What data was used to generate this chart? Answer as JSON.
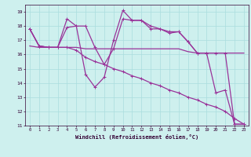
{
  "xlabel": "Windchill (Refroidissement éolien,°C)",
  "bg_color": "#cef0ee",
  "grid_color": "#aadddd",
  "line_color": "#993399",
  "ylim": [
    11,
    19.5
  ],
  "xlim": [
    -0.5,
    23.5
  ],
  "yticks": [
    11,
    12,
    13,
    14,
    15,
    16,
    17,
    18,
    19
  ],
  "xticks": [
    0,
    1,
    2,
    3,
    4,
    5,
    6,
    7,
    8,
    9,
    10,
    11,
    12,
    13,
    14,
    15,
    16,
    17,
    18,
    19,
    20,
    21,
    22,
    23
  ],
  "line1_x": [
    0,
    1,
    2,
    3,
    4,
    5,
    6,
    7,
    8,
    9,
    10,
    11,
    12,
    13,
    14,
    15,
    16,
    17,
    18,
    19,
    20,
    21,
    22,
    23
  ],
  "line1_y": [
    17.8,
    16.6,
    16.5,
    16.5,
    18.5,
    18.0,
    14.6,
    13.7,
    14.4,
    17.0,
    19.1,
    18.4,
    18.4,
    18.0,
    17.8,
    17.6,
    17.6,
    16.9,
    16.1,
    16.1,
    13.3,
    13.5,
    11.1,
    11.1
  ],
  "line2_x": [
    0,
    1,
    2,
    3,
    4,
    5,
    6,
    7,
    8,
    9,
    10,
    11,
    12,
    13,
    14,
    15,
    16,
    17,
    18,
    19,
    20,
    21,
    22,
    23
  ],
  "line2_y": [
    17.8,
    16.6,
    16.5,
    16.5,
    17.9,
    18.0,
    18.0,
    16.5,
    15.3,
    16.4,
    18.5,
    18.4,
    18.4,
    17.8,
    17.8,
    17.5,
    17.6,
    16.9,
    16.1,
    16.1,
    16.1,
    16.1,
    11.1,
    11.1
  ],
  "line3_x": [
    0,
    1,
    2,
    3,
    4,
    5,
    6,
    7,
    8,
    9,
    10,
    11,
    12,
    13,
    14,
    15,
    16,
    17,
    18,
    19,
    20,
    21,
    22,
    23
  ],
  "line3_y": [
    16.6,
    16.5,
    16.5,
    16.5,
    16.5,
    16.5,
    16.4,
    16.4,
    16.4,
    16.4,
    16.4,
    16.4,
    16.4,
    16.4,
    16.4,
    16.4,
    16.4,
    16.2,
    16.1,
    16.1,
    16.1,
    16.1,
    16.1,
    16.1
  ],
  "line4_x": [
    0,
    1,
    2,
    3,
    4,
    5,
    6,
    7,
    8,
    9,
    10,
    11,
    12,
    13,
    14,
    15,
    16,
    17,
    18,
    19,
    20,
    21,
    22,
    23
  ],
  "line4_y": [
    17.8,
    16.6,
    16.5,
    16.5,
    16.5,
    16.3,
    15.8,
    15.5,
    15.3,
    15.0,
    14.8,
    14.5,
    14.3,
    14.0,
    13.8,
    13.5,
    13.3,
    13.0,
    12.8,
    12.5,
    12.3,
    12.0,
    11.5,
    11.1
  ]
}
